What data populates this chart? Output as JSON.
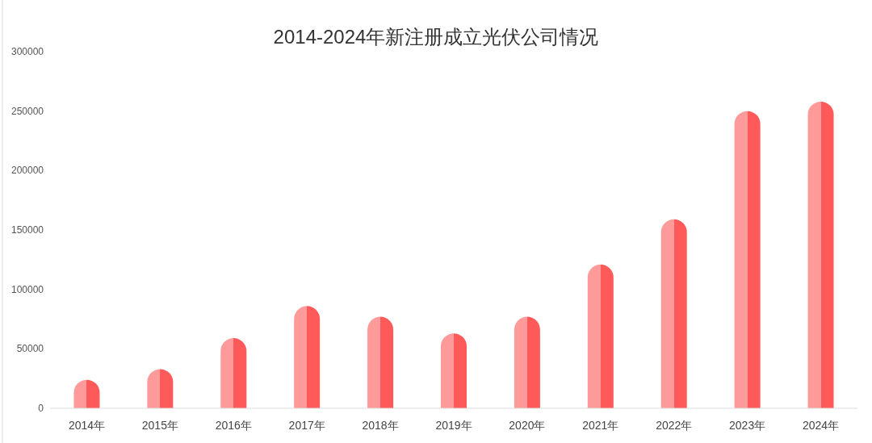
{
  "chart_data": {
    "type": "bar",
    "title": "2014-2024年新注册成立光伏公司情况",
    "categories": [
      "2014年",
      "2015年",
      "2016年",
      "2017年",
      "2018年",
      "2019年",
      "2020年",
      "2021年",
      "2022年",
      "2023年",
      "2024年"
    ],
    "values": [
      24000,
      33000,
      59000,
      86000,
      77000,
      63000,
      77000,
      121000,
      159000,
      250000,
      258000
    ],
    "color": "#ff5a5a",
    "ylim": [
      0,
      300000
    ],
    "yticks": [
      0,
      50000,
      100000,
      150000,
      200000,
      250000,
      300000
    ],
    "grid": false
  }
}
